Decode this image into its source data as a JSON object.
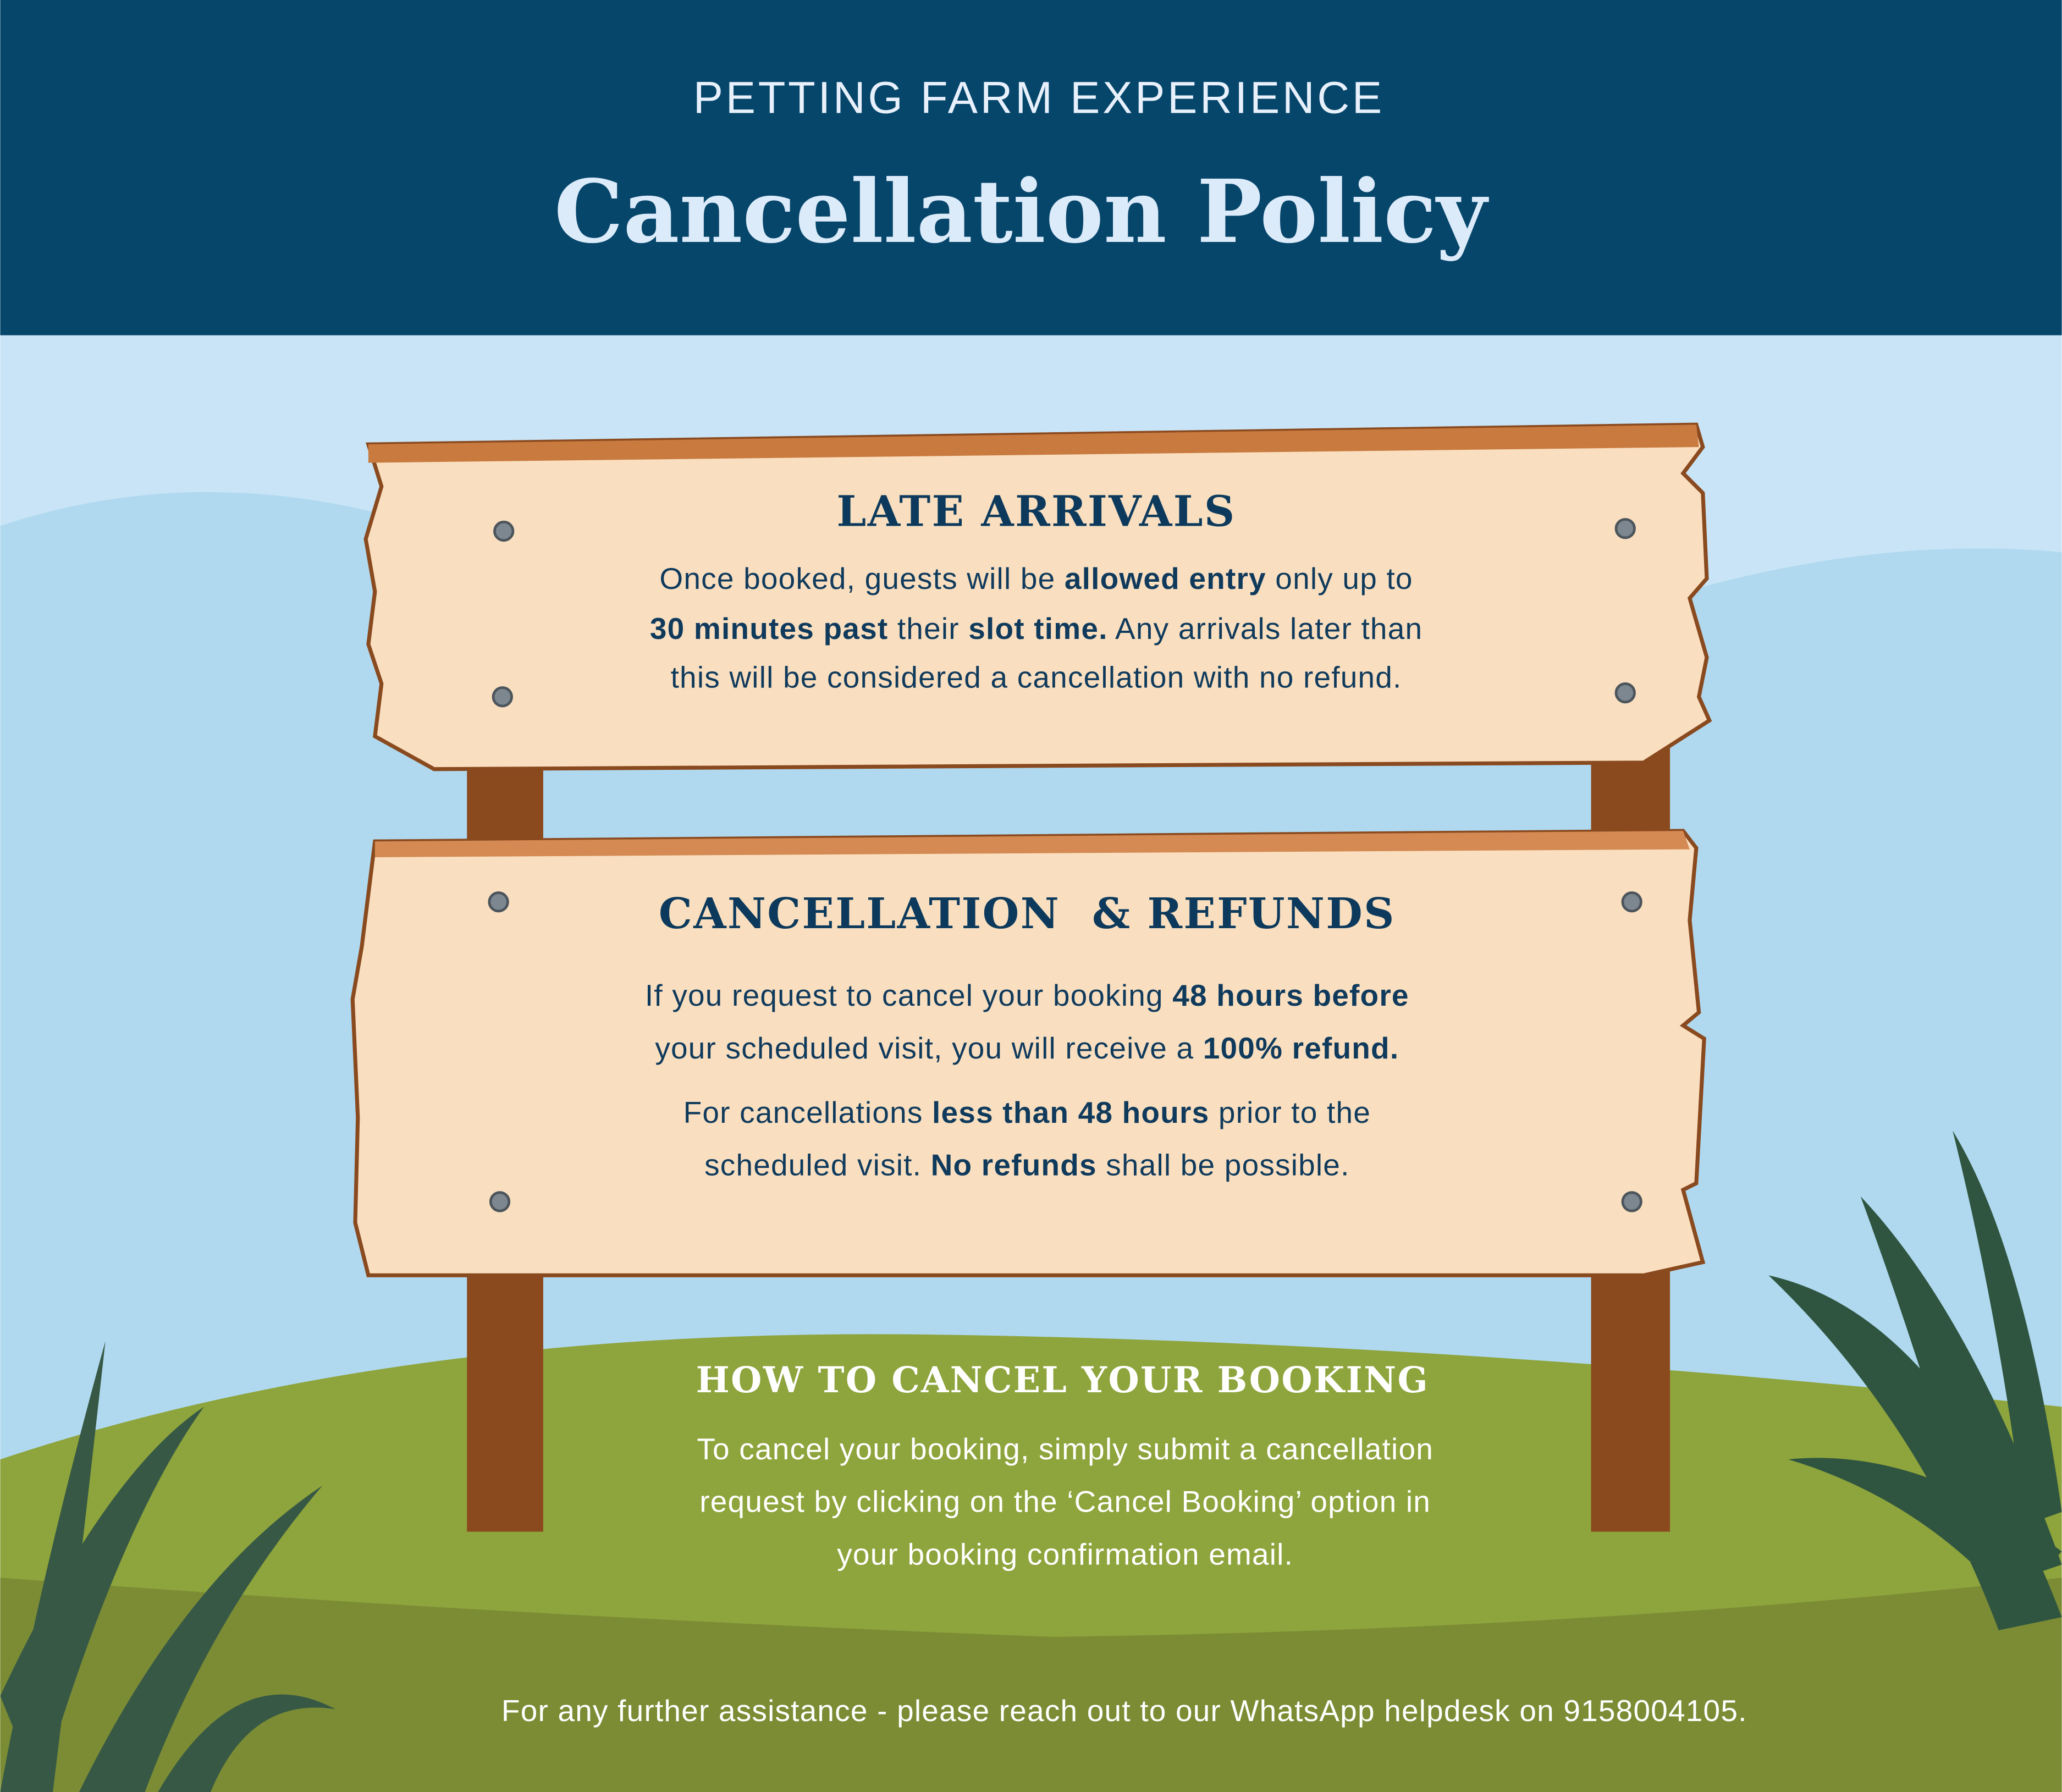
{
  "header": {
    "subtitle": "PETTING FARM EXPERIENCE",
    "title": "Cancellation Policy"
  },
  "sections": [
    {
      "heading": "LATE ARRIVALS",
      "lines": [
        [
          {
            "text": "Once booked, guests will be "
          },
          {
            "text": "allowed entry",
            "bold": true
          },
          {
            "text": " only up to"
          }
        ],
        [
          {
            "text": "30 minutes past",
            "bold": true
          },
          {
            "text": " their "
          },
          {
            "text": "slot time.",
            "bold": true
          },
          {
            "text": " Any arrivals later than"
          }
        ],
        [
          {
            "text": "this will be considered a cancellation with no refund."
          }
        ]
      ]
    },
    {
      "heading": "CANCELLATION  & REFUNDS",
      "lines": [
        [
          {
            "text": "If you request to cancel your booking "
          },
          {
            "text": "48 hours before",
            "bold": true
          }
        ],
        [
          {
            "text": "your scheduled visit, you will receive a "
          },
          {
            "text": "100% refund.",
            "bold": true
          }
        ],
        [
          {
            "text": "For cancellations "
          },
          {
            "text": "less than 48 hours",
            "bold": true
          },
          {
            "text": " prior to the"
          }
        ],
        [
          {
            "text": "scheduled visit. "
          },
          {
            "text": "No refunds",
            "bold": true
          },
          {
            "text": " shall be possible."
          }
        ]
      ]
    },
    {
      "heading": "HOW TO CANCEL YOUR BOOKING",
      "lines": [
        [
          {
            "text": "To cancel your booking, simply submit a cancellation"
          }
        ],
        [
          {
            "text": "request by clicking on the ‘Cancel Booking’ option in"
          }
        ],
        [
          {
            "text": "your booking confirmation email."
          }
        ]
      ]
    }
  ],
  "footer": "For any further assistance - please reach out to our WhatsApp helpdesk on 9158004105."
}
